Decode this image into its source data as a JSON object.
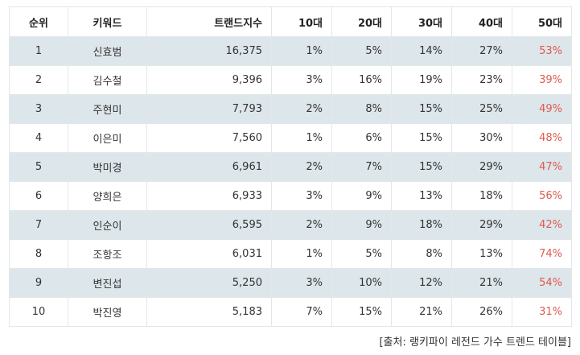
{
  "table": {
    "headers": [
      "순위",
      "키워드",
      "트랜드지수",
      "10대",
      "20대",
      "30대",
      "40대",
      "50대"
    ],
    "rows": [
      [
        "1",
        "신효범",
        "16,375",
        "1%",
        "5%",
        "14%",
        "27%",
        "53%"
      ],
      [
        "2",
        "김수철",
        "9,396",
        "3%",
        "16%",
        "19%",
        "23%",
        "39%"
      ],
      [
        "3",
        "주현미",
        "7,793",
        "2%",
        "8%",
        "15%",
        "25%",
        "49%"
      ],
      [
        "4",
        "이은미",
        "7,560",
        "1%",
        "6%",
        "15%",
        "30%",
        "48%"
      ],
      [
        "5",
        "박미경",
        "6,961",
        "2%",
        "7%",
        "15%",
        "29%",
        "47%"
      ],
      [
        "6",
        "양희은",
        "6,933",
        "3%",
        "9%",
        "13%",
        "18%",
        "56%"
      ],
      [
        "7",
        "인순이",
        "6,595",
        "2%",
        "9%",
        "18%",
        "29%",
        "42%"
      ],
      [
        "8",
        "조항조",
        "6,031",
        "1%",
        "5%",
        "8%",
        "13%",
        "74%"
      ],
      [
        "9",
        "변진섭",
        "5,250",
        "3%",
        "10%",
        "12%",
        "21%",
        "54%"
      ],
      [
        "10",
        "박진영",
        "5,183",
        "7%",
        "15%",
        "21%",
        "26%",
        "31%"
      ]
    ]
  },
  "caption": "[출처: 랭키파이 레전드 가수 트렌드 테이블]",
  "colors": {
    "shaded_row": "#dde6ea",
    "accent": "#e05a4f",
    "border": "#e3e7ea"
  }
}
